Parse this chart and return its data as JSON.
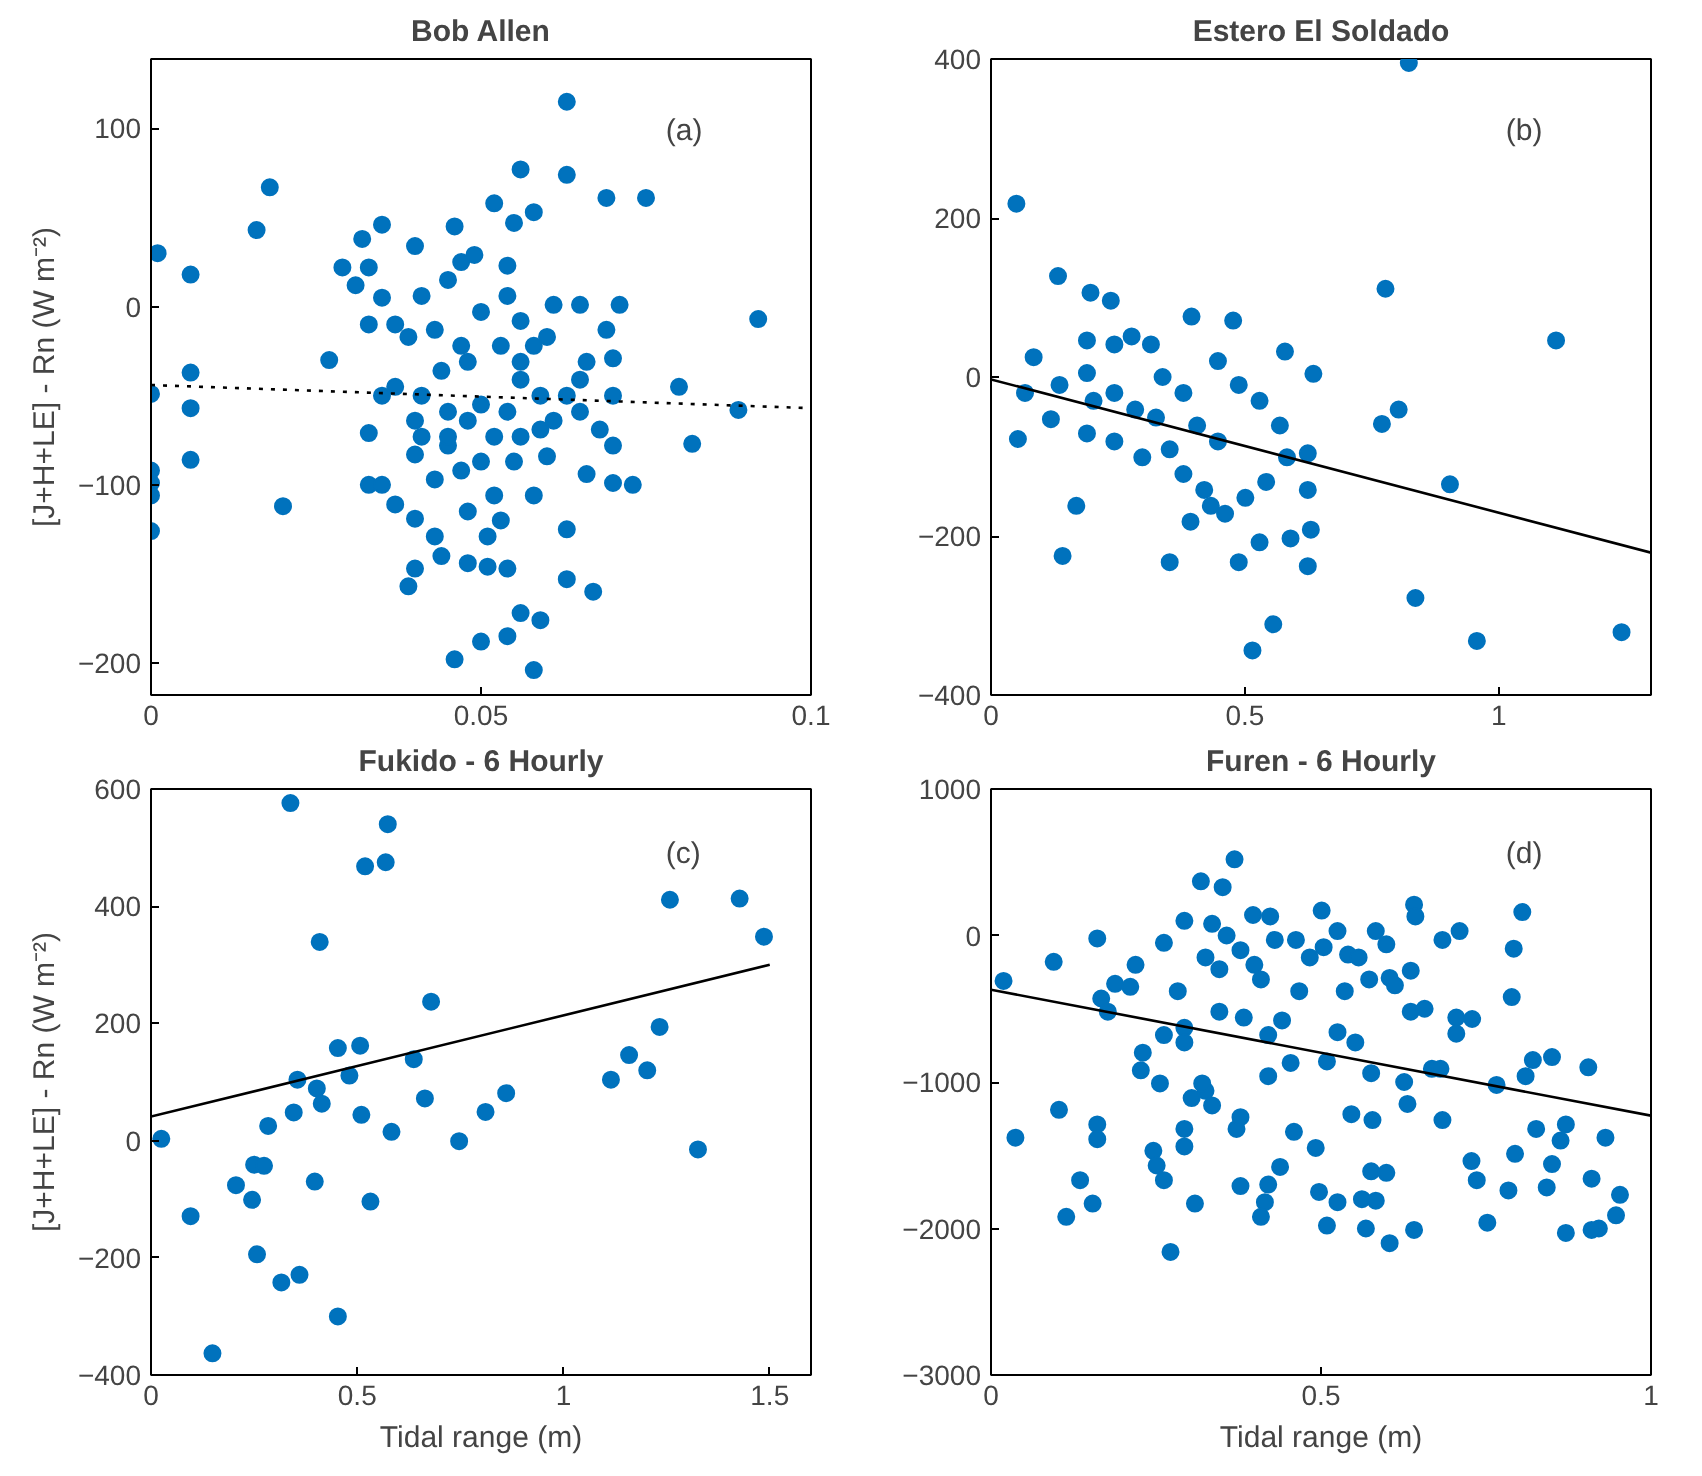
{
  "chart_data": [
    {
      "type": "scatter",
      "title": "Bob Allen",
      "ylabel": "[J+H+LE] - Rn (W m⁻²)",
      "annotations": [
        "(a)"
      ],
      "xlim": [
        0,
        0.1
      ],
      "ylim": [
        -218,
        139
      ],
      "xticks": [
        0,
        0.05,
        0.1
      ],
      "yticks": [
        -200,
        -100,
        0,
        100
      ],
      "grid": false,
      "series": [
        {
          "marker": "circle",
          "color": "#0072bd",
          "x": [
            0.0,
            0.0,
            0.0,
            0.0,
            0.0,
            0.001,
            0.006,
            0.006,
            0.006,
            0.006,
            0.016,
            0.018,
            0.02,
            0.027,
            0.029,
            0.031,
            0.032,
            0.033,
            0.035,
            0.035,
            0.033,
            0.033,
            0.033,
            0.035,
            0.037,
            0.04,
            0.039,
            0.04,
            0.046,
            0.052,
            0.056,
            0.063,
            0.063,
            0.058,
            0.055,
            0.049,
            0.069,
            0.075,
            0.092,
            0.08,
            0.082,
            0.089,
            0.071,
            0.065,
            0.069,
            0.07,
            0.07,
            0.073,
            0.07,
            0.066,
            0.063,
            0.067,
            0.06,
            0.058,
            0.056,
            0.059,
            0.054,
            0.05,
            0.046,
            0.058,
            0.044,
            0.048,
            0.051,
            0.054,
            0.043,
            0.04,
            0.041,
            0.039,
            0.045,
            0.047,
            0.054,
            0.054,
            0.05,
            0.056,
            0.061,
            0.06,
            0.066,
            0.041,
            0.044,
            0.048,
            0.053,
            0.056,
            0.059,
            0.063,
            0.065,
            0.041,
            0.045,
            0.048,
            0.052,
            0.056,
            0.059,
            0.043,
            0.047,
            0.05,
            0.052,
            0.053,
            0.051,
            0.048,
            0.035,
            0.037,
            0.04,
            0.045,
            0.05,
            0.054,
            0.037,
            0.043,
            0.047,
            0.056,
            0.061,
            0.045,
            0.04,
            0.055,
            0.063,
            0.068,
            0.07,
            0.065,
            0.058
          ],
          "values": [
            -49,
            -92,
            -99,
            -106,
            -126,
            30,
            18,
            -37,
            -57,
            -86,
            43,
            67,
            -112,
            -30,
            22,
            12,
            38,
            -10,
            5,
            46,
            22,
            -71,
            -100,
            -100,
            -111,
            -119,
            -157,
            -147,
            45,
            58,
            77,
            115,
            74,
            53,
            47,
            29,
            61,
            61,
            -7,
            -45,
            -77,
            -58,
            1,
            1,
            -13,
            -29,
            -78,
            -100,
            -99,
            -94,
            -153,
            -160,
            -84,
            -106,
            -172,
            -176,
            -185,
            -188,
            -198,
            -204,
            -140,
            -144,
            -146,
            -147,
            -129,
            34,
            6,
            -17,
            15,
            25,
            23,
            6,
            -3,
            -8,
            1,
            -17,
            -31,
            -50,
            -36,
            -31,
            -22,
            -41,
            -50,
            -50,
            -59,
            -73,
            -78,
            -64,
            -73,
            -73,
            -69,
            -97,
            -92,
            -87,
            -106,
            -120,
            -129,
            -115,
            -50,
            -45,
            -64,
            -59,
            -55,
            -59,
            -10,
            -13,
            -22,
            -31,
            -64,
            -73,
            -83,
            -87,
            -125,
            -69,
            -50,
            -41,
            -22
          ]
        },
        {
          "type": "line",
          "color": "#000000",
          "line_style": "dotted",
          "x": [
            0,
            0.1
          ],
          "values": [
            -44,
            -57
          ]
        }
      ]
    },
    {
      "type": "scatter",
      "title": "Estero El Soldado",
      "annotations": [
        "(b)"
      ],
      "xlim": [
        0,
        1.3
      ],
      "ylim": [
        -400,
        400
      ],
      "xticks": [
        0,
        0.5,
        1
      ],
      "yticks": [
        -400,
        -200,
        0,
        200,
        400
      ],
      "grid": false,
      "series": [
        {
          "marker": "circle",
          "color": "#0072bd",
          "x": [
            0.823,
            0.05,
            0.132,
            0.196,
            0.236,
            0.395,
            0.477,
            0.777,
            1.113,
            0.579,
            0.635,
            0.084,
            0.067,
            0.053,
            0.118,
            0.135,
            0.189,
            0.189,
            0.243,
            0.277,
            0.315,
            0.202,
            0.243,
            0.284,
            0.338,
            0.379,
            0.447,
            0.488,
            0.529,
            0.569,
            0.189,
            0.243,
            0.298,
            0.352,
            0.379,
            0.42,
            0.461,
            0.501,
            0.542,
            0.583,
            0.624,
            0.624,
            0.63,
            0.59,
            0.529,
            0.488,
            0.352,
            0.168,
            0.141,
            0.77,
            0.803,
            0.904,
            0.836,
            0.957,
            1.242,
            0.556,
            0.515,
            0.624,
            0.406,
            0.447,
            0.325,
            0.393,
            0.433
          ],
          "values": [
            395,
            218,
            127,
            106,
            96,
            76,
            71,
            111,
            46,
            32,
            4,
            25,
            -20,
            -78,
            -53,
            -10,
            46,
            5,
            41,
            51,
            41,
            -30,
            -20,
            -41,
            0,
            -20,
            20,
            -10,
            -30,
            -61,
            -71,
            -81,
            -101,
            -91,
            -122,
            -142,
            -172,
            -152,
            -132,
            -101,
            -96,
            -142,
            -192,
            -203,
            -208,
            -233,
            -233,
            -162,
            -225,
            -59,
            -41,
            -135,
            -278,
            -332,
            -321,
            -311,
            -344,
            -238,
            -61,
            -81,
            -51,
            -182,
            -162
          ]
        },
        {
          "type": "line",
          "color": "#000000",
          "line_style": "solid",
          "x": [
            0,
            1.3
          ],
          "values": [
            -3,
            -221
          ]
        }
      ]
    },
    {
      "type": "scatter",
      "title": "Fukido - 6 Hourly",
      "xlabel": "Tidal range (m)",
      "ylabel": "[J+H+LE] - Rn (W m⁻²)",
      "annotations": [
        "(c)"
      ],
      "xlim": [
        0,
        1.6
      ],
      "ylim": [
        -400,
        600
      ],
      "xticks": [
        0,
        0.5,
        1,
        1.5
      ],
      "yticks": [
        -400,
        -200,
        0,
        200,
        400,
        600
      ],
      "grid": false,
      "series": [
        {
          "marker": "circle",
          "color": "#0072bd",
          "x": [
            0.338,
            0.574,
            0.519,
            0.569,
            0.409,
            1.258,
            1.427,
            1.486,
            0.679,
            0.453,
            0.507,
            0.355,
            0.481,
            0.637,
            0.402,
            0.414,
            0.346,
            0.51,
            0.664,
            0.811,
            0.861,
            0.583,
            0.284,
            0.025,
            0.25,
            0.274,
            0.206,
            0.245,
            0.397,
            0.532,
            0.747,
            1.115,
            1.159,
            1.203,
            1.233,
            1.326,
            0.096,
            0.257,
            0.316,
            0.36,
            0.453,
            0.149
          ],
          "values": [
            576,
            540,
            468,
            475,
            339,
            411,
            413,
            348,
            237,
            158,
            162,
            104,
            111,
            139,
            89,
            63,
            48,
            44,
            72,
            49,
            81,
            15,
            25,
            3,
            -41,
            -43,
            -76,
            -101,
            -70,
            -104,
            -1,
            104,
            146,
            120,
            194,
            -15,
            -129,
            -194,
            -242,
            -229,
            -300,
            -363
          ]
        },
        {
          "type": "line",
          "color": "#000000",
          "line_style": "solid",
          "x": [
            0,
            1.5
          ],
          "values": [
            41,
            300
          ]
        }
      ]
    },
    {
      "type": "scatter",
      "title": "Furen - 6 Hourly",
      "xlabel": "Tidal range (m)",
      "annotations": [
        "(d)"
      ],
      "xlim": [
        0,
        1
      ],
      "ylim": [
        -3000,
        1000
      ],
      "xticks": [
        0,
        0.5,
        1
      ],
      "yticks": [
        -3000,
        -2000,
        -1000,
        0,
        1000
      ],
      "grid": false,
      "series": [
        {
          "marker": "circle",
          "color": "#0072bd",
          "x": [
            0.369,
            0.318,
            0.351,
            0.397,
            0.423,
            0.501,
            0.641,
            0.643,
            0.805,
            0.792,
            0.684,
            0.71,
            0.161,
            0.095,
            0.019,
            0.219,
            0.188,
            0.211,
            0.167,
            0.177,
            0.283,
            0.262,
            0.293,
            0.335,
            0.357,
            0.325,
            0.346,
            0.378,
            0.399,
            0.409,
            0.43,
            0.462,
            0.483,
            0.504,
            0.525,
            0.541,
            0.557,
            0.583,
            0.599,
            0.573,
            0.536,
            0.467,
            0.441,
            0.383,
            0.346,
            0.293,
            0.262,
            0.293,
            0.23,
            0.227,
            0.256,
            0.42,
            0.525,
            0.552,
            0.509,
            0.454,
            0.42,
            0.576,
            0.604,
            0.612,
            0.636,
            0.636,
            0.657,
            0.705,
            0.729,
            0.705,
            0.789,
            0.626,
            0.631,
            0.668,
            0.681,
            0.766,
            0.821,
            0.85,
            0.81,
            0.905,
            0.103,
            0.161,
            0.161,
            0.037,
            0.304,
            0.325,
            0.293,
            0.293,
            0.372,
            0.378,
            0.32,
            0.335,
            0.546,
            0.578,
            0.684,
            0.459,
            0.492,
            0.826,
            0.871,
            0.931,
            0.863,
            0.794,
            0.728,
            0.736,
            0.784,
            0.85,
            0.842,
            0.91,
            0.953,
            0.947,
            0.921,
            0.91,
            0.871,
            0.752,
            0.641,
            0.604,
            0.568,
            0.509,
            0.525,
            0.497,
            0.562,
            0.583,
            0.576,
            0.599,
            0.378,
            0.42,
            0.415,
            0.409,
            0.438,
            0.246,
            0.251,
            0.262,
            0.309,
            0.272,
            0.135,
            0.154,
            0.114
          ],
          "values": [
            520,
            370,
            330,
            140,
            130,
            170,
            210,
            130,
            160,
            -90,
            -30,
            30,
            -20,
            -180,
            -310,
            -200,
            -330,
            -350,
            -430,
            -520,
            -380,
            -50,
            100,
            80,
            0,
            -150,
            -230,
            -100,
            -200,
            -300,
            -30,
            -30,
            -150,
            -80,
            30,
            -130,
            -150,
            30,
            -60,
            -300,
            -380,
            -380,
            -580,
            -560,
            -520,
            -630,
            -680,
            -730,
            -800,
            -920,
            -1010,
            -680,
            -660,
            -730,
            -860,
            -870,
            -960,
            -940,
            -290,
            -340,
            -240,
            -520,
            -500,
            -560,
            -570,
            -670,
            -420,
            -1000,
            -1150,
            -910,
            -910,
            -1020,
            -850,
            -830,
            -960,
            -900,
            -1190,
            -1290,
            -1390,
            -1380,
            -1110,
            -1060,
            -1320,
            -1440,
            -1320,
            -1240,
            -1010,
            -1160,
            -1220,
            -1260,
            -1260,
            -1340,
            -1450,
            -1320,
            -1290,
            -1380,
            -1400,
            -1490,
            -1540,
            -1670,
            -1740,
            -1560,
            -1720,
            -1660,
            -1770,
            -1910,
            -2000,
            -2010,
            -2030,
            -1960,
            -2010,
            -2100,
            -2000,
            -1980,
            -1820,
            -1750,
            -1800,
            -1810,
            -1610,
            -1620,
            -1710,
            -1700,
            -1820,
            -1920,
            -1580,
            -1470,
            -1570,
            -1670,
            -1830,
            -2160,
            -1670,
            -1830,
            -1920
          ]
        },
        {
          "type": "line",
          "color": "#000000",
          "line_style": "solid",
          "x": [
            0,
            1
          ],
          "values": [
            -370,
            -1230
          ]
        }
      ]
    }
  ]
}
